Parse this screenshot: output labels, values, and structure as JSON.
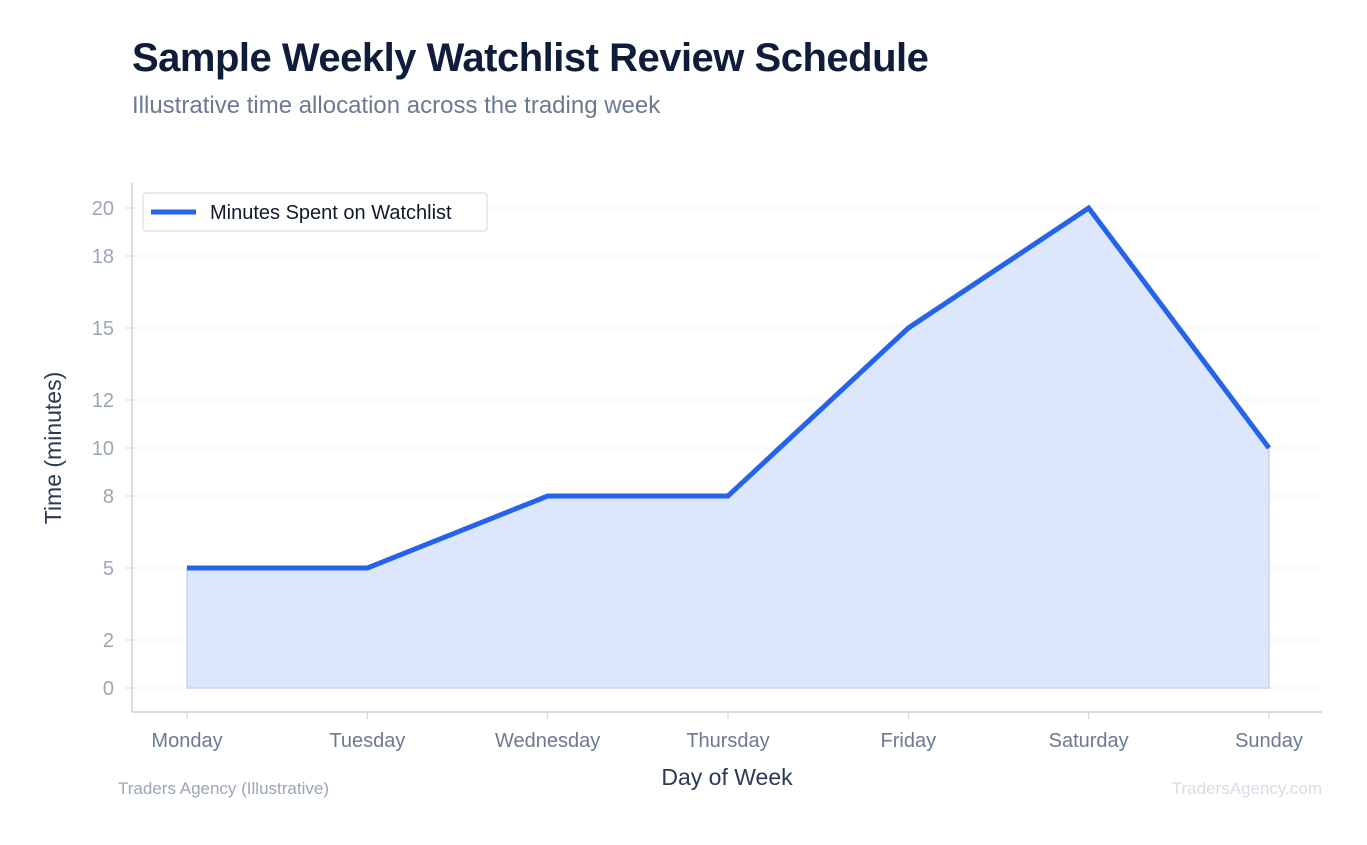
{
  "title": "Sample Weekly Watchlist Review Schedule",
  "subtitle": "Illustrative time allocation across the trading week",
  "footer": {
    "left": "Traders Agency (Illustrative)",
    "right": "TradersAgency.com"
  },
  "colors": {
    "line": "#2563eb",
    "fill": "#dde7fb",
    "title": "#0f1d3a",
    "tick": "#6b7a90"
  },
  "chart_data": {
    "type": "area",
    "title": "Sample Weekly Watchlist Review Schedule",
    "xlabel": "Day of Week",
    "ylabel": "Time (minutes)",
    "categories": [
      "Monday",
      "Tuesday",
      "Wednesday",
      "Thursday",
      "Friday",
      "Saturday",
      "Sunday"
    ],
    "series": [
      {
        "name": "Minutes Spent on Watchlist",
        "values": [
          5,
          5,
          8,
          8,
          15,
          20,
          10
        ]
      }
    ],
    "yticks": [
      0,
      2,
      5,
      8,
      10,
      12,
      15,
      18,
      20
    ],
    "ylim": [
      -1,
      21
    ],
    "grid": true,
    "legend": "top-left"
  }
}
